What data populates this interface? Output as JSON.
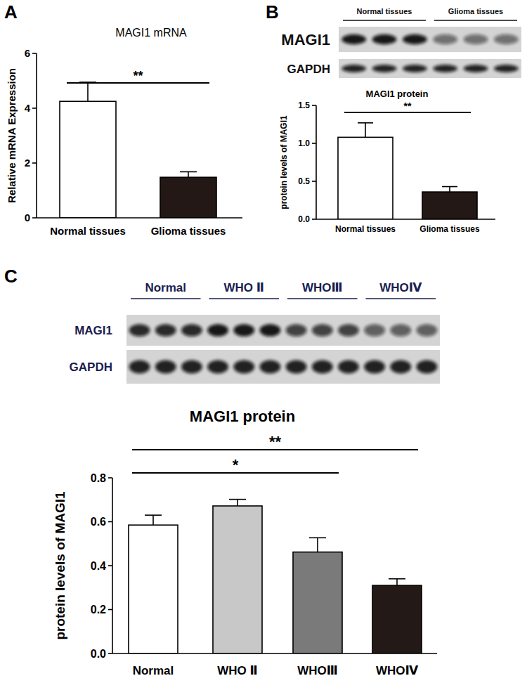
{
  "chart_data": [
    {
      "type": "bar",
      "panel": "A",
      "title": "MAGI1 mRNA",
      "y_label": "Relative mRNA Expression",
      "categories": [
        "Normal tissues",
        "Glioma tissues"
      ],
      "values": [
        4.25,
        1.48
      ],
      "errors": [
        0.7,
        0.2
      ],
      "colors": [
        "#ffffff",
        "#231815"
      ],
      "ylim": [
        0,
        6
      ],
      "yticks": [
        0,
        2,
        4,
        6
      ],
      "annotations": [
        {
          "text": "**",
          "from": 0,
          "to": 1
        }
      ]
    },
    {
      "type": "bar",
      "panel": "B",
      "title": "MAGI1 protein",
      "y_label": "protein levels of MAGI1",
      "categories": [
        "Normal tissues",
        "Glioma tissues"
      ],
      "values": [
        1.08,
        0.36
      ],
      "errors": [
        0.19,
        0.07
      ],
      "colors": [
        "#ffffff",
        "#231815"
      ],
      "ylim": [
        0,
        1.5
      ],
      "yticks": [
        {
          "value": 0,
          "label": "0.0"
        },
        0.5,
        {
          "value": 1,
          "label": "1.0"
        },
        1.5
      ],
      "annotations": [
        {
          "text": "**",
          "from": 0,
          "to": 1
        }
      ],
      "blot": {
        "groups": [
          "Normal tissues",
          "Glioma tissues"
        ],
        "rows": [
          "MAGI1",
          "GAPDH"
        ],
        "lanes": 3
      }
    },
    {
      "type": "bar",
      "panel": "C",
      "title": "MAGI1 protein",
      "y_label": "protein levels of MAGI1",
      "categories": [
        "Normal",
        "WHO Ⅱ",
        "WHOⅢ",
        "WHOⅣ"
      ],
      "values": [
        0.585,
        0.672,
        0.462,
        0.31
      ],
      "errors": [
        0.045,
        0.03,
        0.065,
        0.03
      ],
      "colors": [
        "#ffffff",
        "#c8c8c8",
        "#7a7a7a",
        "#231a17"
      ],
      "ylim": [
        0,
        0.8
      ],
      "yticks": [
        {
          "value": 0,
          "label": "0.0"
        },
        0.2,
        0.4,
        0.6,
        0.8
      ],
      "annotations": [
        {
          "text": "*",
          "from": 0,
          "to": 2
        },
        {
          "text": "**",
          "from": 0,
          "to": 3
        }
      ],
      "blot": {
        "groups": [
          "Normal",
          "WHO Ⅱ",
          "WHOⅢ",
          "WHOⅣ"
        ],
        "rows": [
          "MAGI1",
          "GAPDH"
        ],
        "lanes": 3
      }
    }
  ]
}
